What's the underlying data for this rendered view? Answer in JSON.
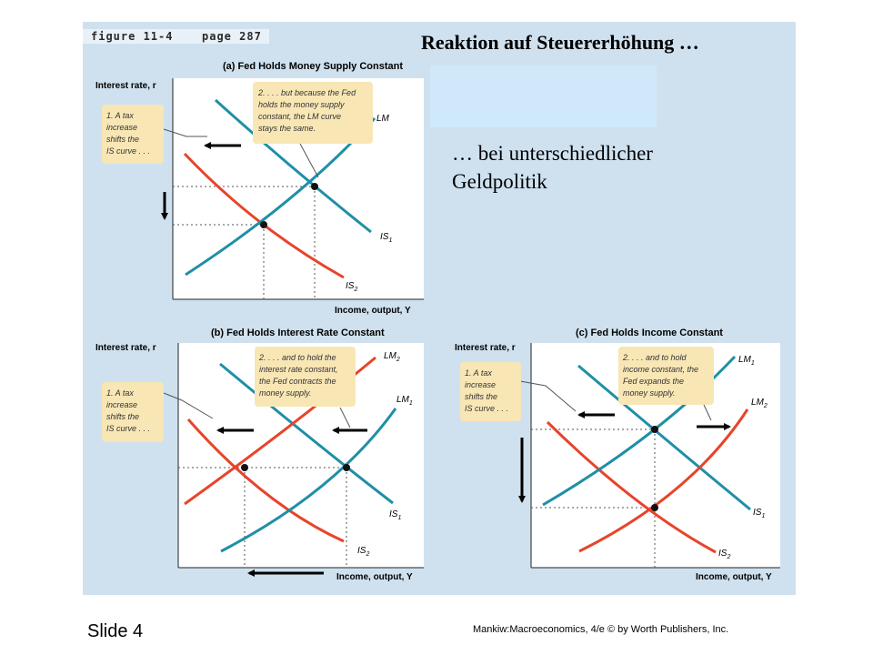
{
  "figure": {
    "label": "figure 11-4",
    "page": "page 287"
  },
  "title": "Reaktion auf Steuererhöhung …",
  "subtitle": "… bei unterschiedlicher Geldpolitik",
  "panels": [
    {
      "heading": "(a) Fed Holds Money Supply Constant",
      "y_axis": "Interest rate, r",
      "x_axis": "Income, output, Y",
      "note1": [
        "1. A tax",
        "increase",
        "shifts the",
        "IS curve . . ."
      ],
      "note2": [
        "2. . . . but because the Fed",
        "holds the money supply",
        "constant, the LM curve",
        "stays the same."
      ],
      "curves": {
        "lm": "LM",
        "is1": "IS",
        "is1_sub": "1",
        "is2": "IS",
        "is2_sub": "2"
      }
    },
    {
      "heading": "(b) Fed Holds Interest Rate Constant",
      "y_axis": "Interest rate, r",
      "x_axis": "Income, output, Y",
      "note1": [
        "1. A tax",
        "increase",
        "shifts the",
        "IS curve . . ."
      ],
      "note2": [
        "2. . . . and to hold the",
        "interest rate constant,",
        "the Fed contracts the",
        "money supply."
      ],
      "curves": {
        "lm2": "LM",
        "lm2_sub": "2",
        "lm1": "LM",
        "lm1_sub": "1",
        "is1": "IS",
        "is1_sub": "1",
        "is2": "IS",
        "is2_sub": "2"
      }
    },
    {
      "heading": "(c) Fed Holds Income Constant",
      "y_axis": "Interest rate, r",
      "x_axis": "Income, output, Y",
      "note1": [
        "1. A tax",
        "increase",
        "shifts the",
        "IS curve . . ."
      ],
      "note2": [
        "2. . . . and to hold",
        "income constant, the",
        "Fed expands the",
        "money supply."
      ],
      "curves": {
        "lm1": "LM",
        "lm1_sub": "1",
        "lm2": "LM",
        "lm2_sub": "2",
        "is1": "IS",
        "is1_sub": "1",
        "is2": "IS",
        "is2_sub": "2"
      }
    }
  ],
  "footer": {
    "slide": "Slide 4",
    "credit": "Mankiw:Macroeconomics, 4/e © by Worth Publishers, Inc."
  },
  "colors": {
    "is_curve": "#e8442a",
    "lm_curve": "#1f8fa6",
    "note_bg": "#f8e6b5",
    "panel_bg": "#cfe1ef",
    "plot_bg": "#ffffff"
  }
}
